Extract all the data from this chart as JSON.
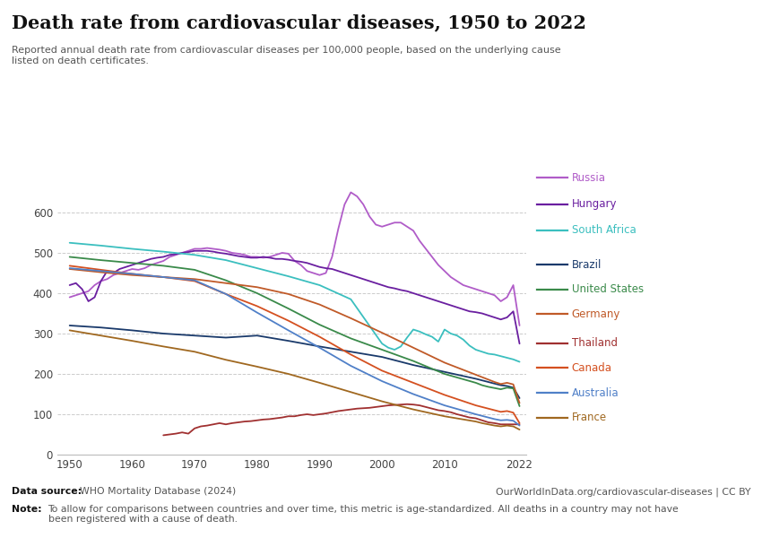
{
  "title": "Death rate from cardiovascular diseases, 1950 to 2022",
  "subtitle": "Reported annual death rate from cardiovascular diseases per 100,000 people, based on the underlying cause\nlisted on death certificates.",
  "ylim": [
    0,
    700
  ],
  "yticks": [
    0,
    100,
    200,
    300,
    400,
    500,
    600
  ],
  "xticks": [
    1950,
    1960,
    1970,
    1980,
    1990,
    2000,
    2010,
    2022
  ],
  "background_color": "#ffffff",
  "series": {
    "Russia": {
      "color": "#b05cc8",
      "years": [
        1950,
        1951,
        1952,
        1953,
        1954,
        1955,
        1956,
        1957,
        1958,
        1959,
        1960,
        1961,
        1962,
        1963,
        1964,
        1965,
        1966,
        1967,
        1968,
        1969,
        1970,
        1971,
        1972,
        1973,
        1974,
        1975,
        1976,
        1977,
        1978,
        1979,
        1980,
        1981,
        1982,
        1983,
        1984,
        1985,
        1986,
        1987,
        1988,
        1989,
        1990,
        1991,
        1992,
        1993,
        1994,
        1995,
        1996,
        1997,
        1998,
        1999,
        2000,
        2001,
        2002,
        2003,
        2004,
        2005,
        2006,
        2007,
        2008,
        2009,
        2010,
        2011,
        2012,
        2013,
        2014,
        2015,
        2016,
        2017,
        2018,
        2019,
        2020,
        2021,
        2022
      ],
      "values": [
        390,
        395,
        400,
        405,
        420,
        430,
        435,
        445,
        450,
        455,
        460,
        458,
        462,
        470,
        475,
        480,
        490,
        495,
        500,
        505,
        510,
        510,
        512,
        510,
        508,
        505,
        500,
        498,
        495,
        490,
        490,
        488,
        490,
        495,
        500,
        498,
        480,
        470,
        455,
        450,
        445,
        450,
        490,
        560,
        620,
        650,
        640,
        620,
        590,
        570,
        565,
        570,
        575,
        575,
        565,
        555,
        530,
        510,
        490,
        470,
        455,
        440,
        430,
        420,
        415,
        410,
        405,
        400,
        395,
        380,
        390,
        420,
        320
      ]
    },
    "Hungary": {
      "color": "#6a1fa0",
      "years": [
        1950,
        1951,
        1952,
        1953,
        1954,
        1955,
        1956,
        1957,
        1958,
        1959,
        1960,
        1961,
        1962,
        1963,
        1964,
        1965,
        1966,
        1967,
        1968,
        1969,
        1970,
        1971,
        1972,
        1973,
        1974,
        1975,
        1976,
        1977,
        1978,
        1979,
        1980,
        1981,
        1982,
        1983,
        1984,
        1985,
        1986,
        1987,
        1988,
        1989,
        1990,
        1991,
        1992,
        1993,
        1994,
        1995,
        1996,
        1997,
        1998,
        1999,
        2000,
        2001,
        2002,
        2003,
        2004,
        2005,
        2006,
        2007,
        2008,
        2009,
        2010,
        2011,
        2012,
        2013,
        2014,
        2015,
        2016,
        2017,
        2018,
        2019,
        2020,
        2021,
        2022
      ],
      "values": [
        420,
        425,
        410,
        380,
        390,
        430,
        455,
        450,
        460,
        465,
        470,
        475,
        480,
        485,
        488,
        490,
        495,
        497,
        500,
        502,
        505,
        505,
        505,
        503,
        500,
        498,
        495,
        492,
        490,
        488,
        488,
        490,
        488,
        485,
        485,
        483,
        480,
        478,
        475,
        470,
        465,
        462,
        460,
        455,
        450,
        445,
        440,
        435,
        430,
        425,
        420,
        415,
        412,
        408,
        405,
        400,
        395,
        390,
        385,
        380,
        375,
        370,
        365,
        360,
        355,
        353,
        350,
        345,
        340,
        335,
        340,
        355,
        275
      ]
    },
    "South Africa": {
      "color": "#3bbfbf",
      "years": [
        1950,
        1955,
        1960,
        1965,
        1970,
        1975,
        1980,
        1985,
        1990,
        1995,
        2000,
        2001,
        2002,
        2003,
        2004,
        2005,
        2006,
        2007,
        2008,
        2009,
        2010,
        2011,
        2012,
        2013,
        2014,
        2015,
        2016,
        2017,
        2018,
        2019,
        2020,
        2021,
        2022
      ],
      "values": [
        525,
        518,
        510,
        503,
        495,
        482,
        462,
        442,
        420,
        385,
        275,
        265,
        260,
        268,
        290,
        310,
        305,
        298,
        292,
        280,
        310,
        300,
        295,
        285,
        270,
        260,
        255,
        250,
        248,
        244,
        240,
        236,
        230
      ]
    },
    "Brazil": {
      "color": "#1a3a6b",
      "years": [
        1950,
        1955,
        1960,
        1965,
        1970,
        1975,
        1980,
        1985,
        1990,
        1995,
        2000,
        2005,
        2010,
        2015,
        2016,
        2017,
        2018,
        2019,
        2020,
        2021,
        2022
      ],
      "values": [
        320,
        315,
        308,
        300,
        295,
        290,
        295,
        282,
        268,
        255,
        242,
        222,
        205,
        188,
        184,
        180,
        176,
        172,
        170,
        166,
        140
      ]
    },
    "United States": {
      "color": "#3a8a4a",
      "years": [
        1950,
        1955,
        1960,
        1965,
        1970,
        1975,
        1980,
        1985,
        1990,
        1995,
        2000,
        2005,
        2010,
        2015,
        2016,
        2017,
        2018,
        2019,
        2020,
        2021,
        2022
      ],
      "values": [
        490,
        482,
        475,
        468,
        458,
        432,
        400,
        362,
        322,
        288,
        260,
        232,
        200,
        178,
        172,
        168,
        165,
        162,
        166,
        164,
        120
      ]
    },
    "Germany": {
      "color": "#c05a28",
      "years": [
        1950,
        1955,
        1960,
        1965,
        1970,
        1975,
        1980,
        1985,
        1990,
        1995,
        2000,
        2005,
        2010,
        2015,
        2016,
        2017,
        2018,
        2019,
        2020,
        2021,
        2022
      ],
      "values": [
        460,
        452,
        445,
        440,
        435,
        425,
        415,
        398,
        372,
        338,
        302,
        265,
        228,
        198,
        192,
        186,
        180,
        175,
        178,
        174,
        128
      ]
    },
    "Thailand": {
      "color": "#a03030",
      "years": [
        1965,
        1966,
        1967,
        1968,
        1969,
        1970,
        1971,
        1972,
        1973,
        1974,
        1975,
        1976,
        1977,
        1978,
        1979,
        1980,
        1981,
        1982,
        1983,
        1984,
        1985,
        1986,
        1987,
        1988,
        1989,
        1990,
        1991,
        1992,
        1993,
        1994,
        1995,
        1996,
        1997,
        1998,
        1999,
        2000,
        2001,
        2002,
        2003,
        2004,
        2005,
        2006,
        2007,
        2008,
        2009,
        2010,
        2011,
        2012,
        2013,
        2014,
        2015,
        2016,
        2017,
        2018,
        2019,
        2020,
        2021,
        2022
      ],
      "values": [
        48,
        50,
        52,
        55,
        52,
        65,
        70,
        72,
        75,
        78,
        75,
        78,
        80,
        82,
        83,
        85,
        87,
        88,
        90,
        92,
        95,
        95,
        98,
        100,
        98,
        100,
        102,
        105,
        108,
        110,
        112,
        114,
        115,
        116,
        118,
        120,
        122,
        123,
        124,
        125,
        124,
        122,
        118,
        114,
        110,
        108,
        105,
        100,
        96,
        92,
        90,
        85,
        80,
        78,
        75,
        75,
        75,
        75
      ]
    },
    "Canada": {
      "color": "#d45020",
      "years": [
        1950,
        1955,
        1960,
        1965,
        1970,
        1975,
        1980,
        1985,
        1990,
        1995,
        2000,
        2005,
        2010,
        2015,
        2016,
        2017,
        2018,
        2019,
        2020,
        2021,
        2022
      ],
      "values": [
        468,
        458,
        448,
        440,
        430,
        398,
        368,
        332,
        292,
        248,
        208,
        178,
        148,
        122,
        118,
        114,
        110,
        106,
        108,
        104,
        78
      ]
    },
    "Australia": {
      "color": "#5080c8",
      "years": [
        1950,
        1955,
        1960,
        1965,
        1970,
        1975,
        1980,
        1985,
        1990,
        1995,
        2000,
        2005,
        2010,
        2015,
        2016,
        2017,
        2018,
        2019,
        2020,
        2021,
        2022
      ],
      "values": [
        462,
        455,
        448,
        440,
        432,
        398,
        352,
        308,
        265,
        220,
        182,
        150,
        122,
        100,
        96,
        92,
        88,
        85,
        86,
        84,
        72
      ]
    },
    "France": {
      "color": "#a06820",
      "years": [
        1950,
        1955,
        1960,
        1965,
        1970,
        1975,
        1980,
        1985,
        1990,
        1995,
        2000,
        2005,
        2010,
        2015,
        2016,
        2017,
        2018,
        2019,
        2020,
        2021,
        2022
      ],
      "values": [
        308,
        295,
        282,
        268,
        255,
        235,
        218,
        200,
        178,
        155,
        132,
        112,
        95,
        82,
        78,
        75,
        72,
        70,
        72,
        70,
        62
      ]
    }
  },
  "legend_order": [
    "Russia",
    "Hungary",
    "South Africa",
    "Brazil",
    "United States",
    "Germany",
    "Thailand",
    "Canada",
    "Australia",
    "France"
  ],
  "legend_colors": {
    "Russia": "#b05cc8",
    "Hungary": "#6a1fa0",
    "South Africa": "#3bbfbf",
    "Brazil": "#1a3a6b",
    "United States": "#3a8a4a",
    "Germany": "#c05a28",
    "Thailand": "#a03030",
    "Canada": "#d45020",
    "Australia": "#5080c8",
    "France": "#a06820"
  }
}
